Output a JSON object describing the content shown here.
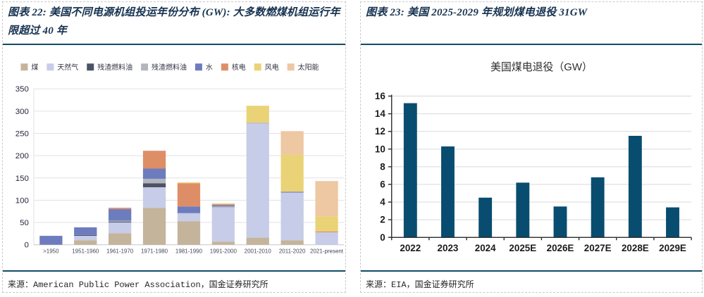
{
  "figures": [
    {
      "label": "图表 22",
      "title": "图表 22: 美国不同电源机组投运年份分布 (GW): 大多数燃煤机组运行年限超过 40 年",
      "source": "来源：American Public Power Association，国金证券研究所"
    },
    {
      "label": "图表 23",
      "title": "图表 23: 美国 2025-2029 年规划煤电退役 31GW",
      "source": "来源：EIA，国金证券研究所"
    }
  ],
  "colors": {
    "rule": "#114b66",
    "panel_border": "#c9c9c9",
    "grid": "#e2e2e6",
    "baseline": "#c6c6cc",
    "axis": "#2b2b2b",
    "left_ylabel": "#26263c",
    "left_xlabel": "#46475e",
    "right_label": "#1b1b1b",
    "right_title": "#2e2e2e"
  },
  "chart_data": [
    {
      "type": "bar",
      "stacked": true,
      "title": "",
      "unit": "GW",
      "legend_position": "top",
      "grid": true,
      "ylim": [
        0,
        350
      ],
      "ytick_step": 50,
      "categories": [
        ">1950",
        "1951-1960",
        "1961-1970",
        "1971-1980",
        "1981-1990",
        "1991-2000",
        "2001-2010",
        "2011-2020",
        "2021-present"
      ],
      "series": [
        {
          "name": "煤",
          "color": "#c4b49b",
          "values": [
            0,
            10,
            26,
            83,
            53,
            7,
            16,
            10,
            0
          ]
        },
        {
          "name": "天然气",
          "color": "#c7cce8",
          "values": [
            0,
            10,
            24,
            46,
            17,
            76,
            256,
            107,
            28
          ]
        },
        {
          "name": "残渣燃料油",
          "color": "#4b5365",
          "values": [
            0,
            2,
            2,
            9,
            0,
            0,
            0,
            0,
            0
          ]
        },
        {
          "name": "残渣燃料油",
          "color": "#b2b6be",
          "values": [
            0,
            0,
            2,
            10,
            1,
            3,
            2,
            0,
            0
          ]
        },
        {
          "name": "水",
          "color": "#6d7cbe",
          "values": [
            20,
            17,
            26,
            23,
            15,
            3,
            0,
            2,
            0
          ]
        },
        {
          "name": "核电",
          "color": "#de8e67",
          "values": [
            0,
            0,
            3,
            40,
            52,
            2,
            0,
            0,
            2
          ]
        },
        {
          "name": "风电",
          "color": "#e9d376",
          "values": [
            0,
            0,
            0,
            0,
            2,
            2,
            38,
            83,
            34
          ]
        },
        {
          "name": "太阳能",
          "color": "#eec7a3",
          "values": [
            0,
            0,
            0,
            0,
            0,
            0,
            0,
            53,
            79
          ]
        }
      ]
    },
    {
      "type": "bar",
      "stacked": false,
      "title": "美国煤电退役（GW）",
      "unit": "GW",
      "grid": true,
      "ylim": [
        0,
        16
      ],
      "ytick_step": 2,
      "bar_color": "#084d70",
      "categories": [
        "2022",
        "2023",
        "2024",
        "2025E",
        "2026E",
        "2027E",
        "2028E",
        "2029E"
      ],
      "values": [
        15.2,
        10.3,
        4.5,
        6.2,
        3.5,
        6.8,
        11.5,
        3.4
      ]
    }
  ]
}
